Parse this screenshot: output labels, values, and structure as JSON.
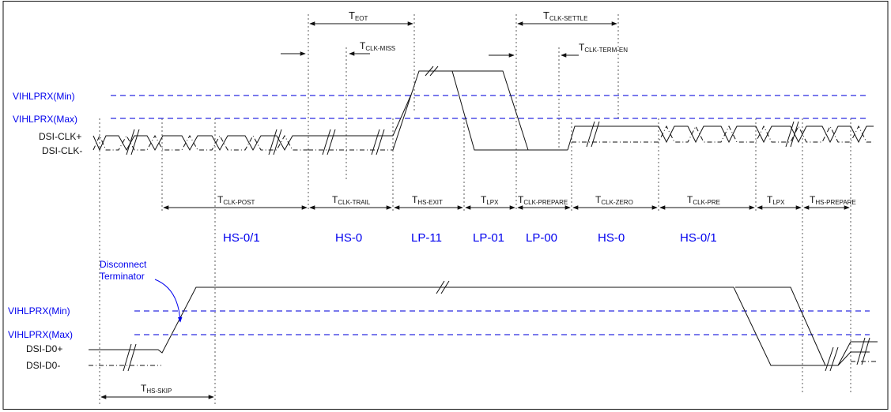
{
  "levels": {
    "top_min": "VIHLPRX(Min)",
    "top_max": "VIHLPRX(Max)",
    "bot_min": "VIHLPRX(Min)",
    "bot_max": "VIHLPRX(Max)"
  },
  "signals": {
    "clk_p": "DSI-CLK+",
    "clk_n": "DSI-CLK-",
    "d0_p": "DSI-D0+",
    "d0_n": "DSI-D0-"
  },
  "annotation": {
    "line1": "Disconnect",
    "line2": "Terminator"
  },
  "timings": {
    "t_eot": {
      "main": "T",
      "sub": "EOT"
    },
    "t_clk_miss": {
      "main": "T",
      "sub": "CLK-MISS"
    },
    "t_clk_settle": {
      "main": "T",
      "sub": "CLK-SETTLE"
    },
    "t_clk_term_en": {
      "main": "T",
      "sub": "CLK-TERM-EN"
    },
    "t_clk_post": {
      "main": "T",
      "sub": "CLK-POST"
    },
    "t_clk_trail": {
      "main": "T",
      "sub": "CLK-TRAIL"
    },
    "t_hs_exit": {
      "main": "T",
      "sub": "HS-EXIT"
    },
    "t_lpx_1": {
      "main": "T",
      "sub": "LPX"
    },
    "t_clk_prepare": {
      "main": "T",
      "sub": "CLK-PREPARE"
    },
    "t_clk_zero": {
      "main": "T",
      "sub": "CLK-ZERO"
    },
    "t_clk_pre": {
      "main": "T",
      "sub": "CLK-PRE"
    },
    "t_lpx_2": {
      "main": "T",
      "sub": "LPX"
    },
    "t_hs_prepare": {
      "main": "T",
      "sub": "HS-PREPARE"
    },
    "t_hs_skip": {
      "main": "T",
      "sub": "HS-SKIP"
    }
  },
  "states": [
    "HS-0/1",
    "HS-0",
    "LP-11",
    "LP-01",
    "LP-00",
    "HS-0",
    "HS-0/1"
  ],
  "colors": {
    "state_text": "#0000ee",
    "level_line": "#2a2ae0",
    "signal": "#111111"
  }
}
